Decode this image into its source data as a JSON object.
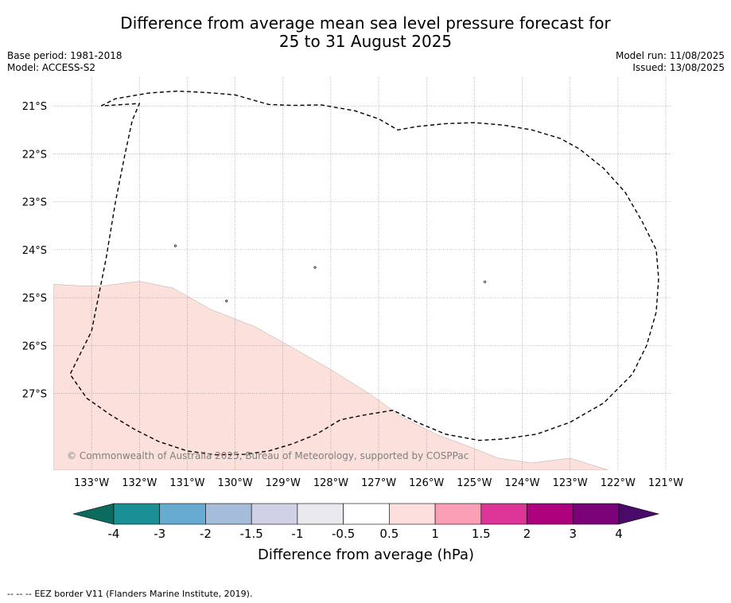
{
  "title": {
    "line1": "Difference from average mean sea level pressure forecast for",
    "line2": "25 to 31 August 2025"
  },
  "meta": {
    "base_period": "Base period: 1981-2018",
    "model": "Model: ACCESS-S2",
    "model_run": "Model run: 11/08/2025",
    "issued": "Issued: 13/08/2025"
  },
  "map": {
    "lon_range": [
      -133.8,
      -120.9
    ],
    "lat_range": [
      -28.6,
      -20.4
    ],
    "lon_ticks": [
      {
        "value": -133,
        "label": "133°W"
      },
      {
        "value": -132,
        "label": "132°W"
      },
      {
        "value": -131,
        "label": "131°W"
      },
      {
        "value": -130,
        "label": "130°W"
      },
      {
        "value": -129,
        "label": "129°W"
      },
      {
        "value": -128,
        "label": "128°W"
      },
      {
        "value": -127,
        "label": "127°W"
      },
      {
        "value": -126,
        "label": "126°W"
      },
      {
        "value": -125,
        "label": "125°W"
      },
      {
        "value": -124,
        "label": "124°W"
      },
      {
        "value": -123,
        "label": "123°W"
      },
      {
        "value": -122,
        "label": "122°W"
      },
      {
        "value": -121,
        "label": "121°W"
      }
    ],
    "lat_ticks": [
      {
        "value": -21,
        "label": "21°S"
      },
      {
        "value": -22,
        "label": "22°S"
      },
      {
        "value": -23,
        "label": "23°S"
      },
      {
        "value": -24,
        "label": "24°S"
      },
      {
        "value": -25,
        "label": "25°S"
      },
      {
        "value": -26,
        "label": "26°S"
      },
      {
        "value": -27,
        "label": "27°S"
      }
    ],
    "anomaly_region": {
      "color": "#fce0dc",
      "category": "0.5 to 1",
      "boundary_lonlat": [
        [
          -133.8,
          -24.72
        ],
        [
          -133.3,
          -24.75
        ],
        [
          -132.8,
          -24.76
        ],
        [
          -132.0,
          -24.66
        ],
        [
          -131.3,
          -24.8
        ],
        [
          -130.5,
          -25.25
        ],
        [
          -129.6,
          -25.6
        ],
        [
          -128.7,
          -26.1
        ],
        [
          -128.0,
          -26.5
        ],
        [
          -127.2,
          -27.0
        ],
        [
          -126.5,
          -27.5
        ],
        [
          -125.8,
          -27.85
        ],
        [
          -125.0,
          -28.15
        ],
        [
          -124.5,
          -28.35
        ],
        [
          -123.8,
          -28.45
        ],
        [
          -123.0,
          -28.35
        ],
        [
          -122.2,
          -28.6
        ],
        [
          -133.8,
          -28.6
        ]
      ]
    },
    "islands_lonlat": [
      [
        -131.25,
        -23.92
      ],
      [
        -128.33,
        -24.37
      ],
      [
        -130.18,
        -25.07
      ],
      [
        -124.78,
        -24.67
      ]
    ],
    "eez_border_lonlat": [
      [
        -132.8,
        -21.0
      ],
      [
        -132.5,
        -20.85
      ],
      [
        -131.8,
        -20.73
      ],
      [
        -131.2,
        -20.69
      ],
      [
        -130.6,
        -20.72
      ],
      [
        -130.0,
        -20.77
      ],
      [
        -129.3,
        -20.97
      ],
      [
        -128.8,
        -20.99
      ],
      [
        -128.2,
        -20.98
      ],
      [
        -127.5,
        -21.1
      ],
      [
        -127.0,
        -21.27
      ],
      [
        -126.6,
        -21.5
      ],
      [
        -126.2,
        -21.43
      ],
      [
        -125.6,
        -21.37
      ],
      [
        -125.0,
        -21.35
      ],
      [
        -124.4,
        -21.4
      ],
      [
        -123.8,
        -21.5
      ],
      [
        -123.2,
        -21.68
      ],
      [
        -122.8,
        -21.9
      ],
      [
        -122.3,
        -22.3
      ],
      [
        -121.85,
        -22.8
      ],
      [
        -121.5,
        -23.4
      ],
      [
        -121.2,
        -24.0
      ],
      [
        -121.15,
        -24.6
      ],
      [
        -121.2,
        -25.3
      ],
      [
        -121.4,
        -26.0
      ],
      [
        -121.7,
        -26.6
      ],
      [
        -122.3,
        -27.2
      ],
      [
        -123.0,
        -27.6
      ],
      [
        -123.7,
        -27.85
      ],
      [
        -124.4,
        -27.95
      ],
      [
        -124.9,
        -27.98
      ],
      [
        -125.6,
        -27.85
      ],
      [
        -126.2,
        -27.6
      ],
      [
        -126.7,
        -27.35
      ],
      [
        -127.3,
        -27.45
      ],
      [
        -127.8,
        -27.55
      ],
      [
        -128.3,
        -27.85
      ],
      [
        -128.8,
        -28.05
      ],
      [
        -129.3,
        -28.2
      ],
      [
        -129.8,
        -28.27
      ],
      [
        -130.4,
        -28.28
      ],
      [
        -131.0,
        -28.2
      ],
      [
        -131.6,
        -28.0
      ],
      [
        -132.1,
        -27.75
      ],
      [
        -132.6,
        -27.45
      ],
      [
        -133.1,
        -27.1
      ],
      [
        -133.45,
        -26.6
      ],
      [
        -133.0,
        -25.7
      ],
      [
        -132.7,
        -24.2
      ],
      [
        -132.5,
        -23.0
      ],
      [
        -132.3,
        -22.0
      ],
      [
        -132.15,
        -21.3
      ],
      [
        -132.0,
        -20.95
      ]
    ],
    "copyright": "© Commonwealth of Australia 2025, Bureau of Meteorology, supported by COSPPac"
  },
  "colorbar": {
    "title": "Difference from average (hPa)",
    "ticks": [
      "-4",
      "-3",
      "-2",
      "-1.5",
      "-1",
      "-0.5",
      "0.5",
      "1",
      "1.5",
      "2",
      "3",
      "4"
    ],
    "under_color": "#0b6b5e",
    "over_color": "#4a0a6a",
    "bin_colors": [
      "#1b8f96",
      "#66abd1",
      "#a6bcdb",
      "#d0d1e6",
      "#eae9ee",
      "#ffffff",
      "#fde0dd",
      "#fa9fb5",
      "#dd3497",
      "#ae017e",
      "#7a0177"
    ]
  },
  "footer": {
    "legend_symbol": "--  --  --",
    "legend_text": "EEZ border V11 (Flanders Marine Institute, 2019)."
  }
}
